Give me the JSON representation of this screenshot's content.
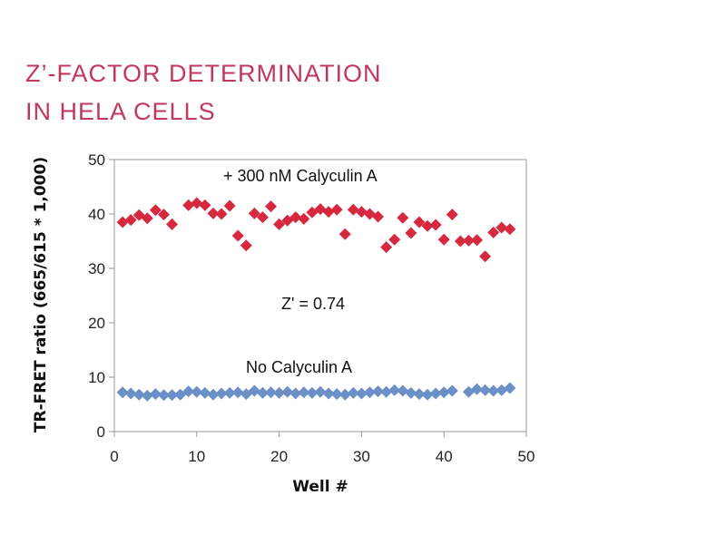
{
  "title_line1": "Z’-FACTOR DETERMINATION",
  "title_line2": "IN HELA CELLS",
  "chart_data": {
    "type": "scatter",
    "xlabel": "Well #",
    "ylabel": "TR-FRET ratio (665/615 * 1,000)",
    "xlim": [
      0,
      50
    ],
    "ylim": [
      0,
      50
    ],
    "xticks": [
      0,
      10,
      20,
      30,
      40,
      50
    ],
    "yticks": [
      0,
      10,
      20,
      30,
      40,
      50
    ],
    "grid": false,
    "annotations": {
      "high": "+ 300 nM Calyculin A",
      "z": "Z' = 0.74",
      "low": "No Calyculin A"
    },
    "series": [
      {
        "color": "#d6283f",
        "x": [
          1,
          2,
          3,
          4,
          5,
          6,
          7,
          9,
          10,
          11,
          12,
          13,
          14,
          15,
          16,
          17,
          18,
          19,
          20,
          21,
          22,
          23,
          24,
          25,
          26,
          27,
          28,
          29,
          30,
          31,
          32,
          33,
          34,
          35,
          36,
          37,
          38,
          39,
          40,
          41,
          42,
          43,
          44,
          45,
          46,
          47,
          48
        ],
        "y": [
          38.5,
          38.9,
          39.8,
          39.2,
          40.7,
          39.9,
          38.1,
          41.6,
          42.0,
          41.6,
          40.1,
          40.0,
          41.5,
          36.0,
          34.2,
          40.1,
          39.4,
          41.4,
          38.1,
          38.8,
          39.4,
          39.1,
          40.3,
          40.9,
          40.4,
          40.8,
          36.3,
          40.8,
          40.4,
          40.0,
          39.5,
          33.9,
          35.3,
          39.3,
          36.5,
          38.5,
          37.8,
          38.0,
          35.3,
          39.9,
          35.0,
          35.1,
          35.2,
          32.2,
          36.6,
          37.5,
          37.2
        ]
      },
      {
        "color": "#6b8fc7",
        "x": [
          1,
          2,
          3,
          4,
          5,
          6,
          7,
          8,
          9,
          10,
          11,
          12,
          13,
          14,
          15,
          16,
          17,
          18,
          19,
          20,
          21,
          22,
          23,
          24,
          25,
          26,
          27,
          28,
          29,
          30,
          31,
          32,
          33,
          34,
          35,
          36,
          37,
          38,
          39,
          40,
          41,
          43,
          44,
          45,
          46,
          47,
          48
        ],
        "y": [
          7.2,
          7.0,
          6.8,
          6.6,
          6.9,
          6.7,
          6.7,
          6.8,
          7.4,
          7.3,
          7.1,
          6.8,
          7.0,
          7.1,
          7.2,
          6.9,
          7.5,
          7.1,
          7.2,
          7.1,
          7.3,
          7.0,
          7.2,
          7.1,
          7.3,
          7.0,
          6.9,
          6.8,
          7.1,
          7.0,
          7.2,
          7.4,
          7.3,
          7.6,
          7.5,
          7.1,
          6.9,
          6.8,
          7.0,
          7.2,
          7.5,
          7.3,
          7.8,
          7.6,
          7.5,
          7.6,
          8.0
        ]
      }
    ]
  }
}
